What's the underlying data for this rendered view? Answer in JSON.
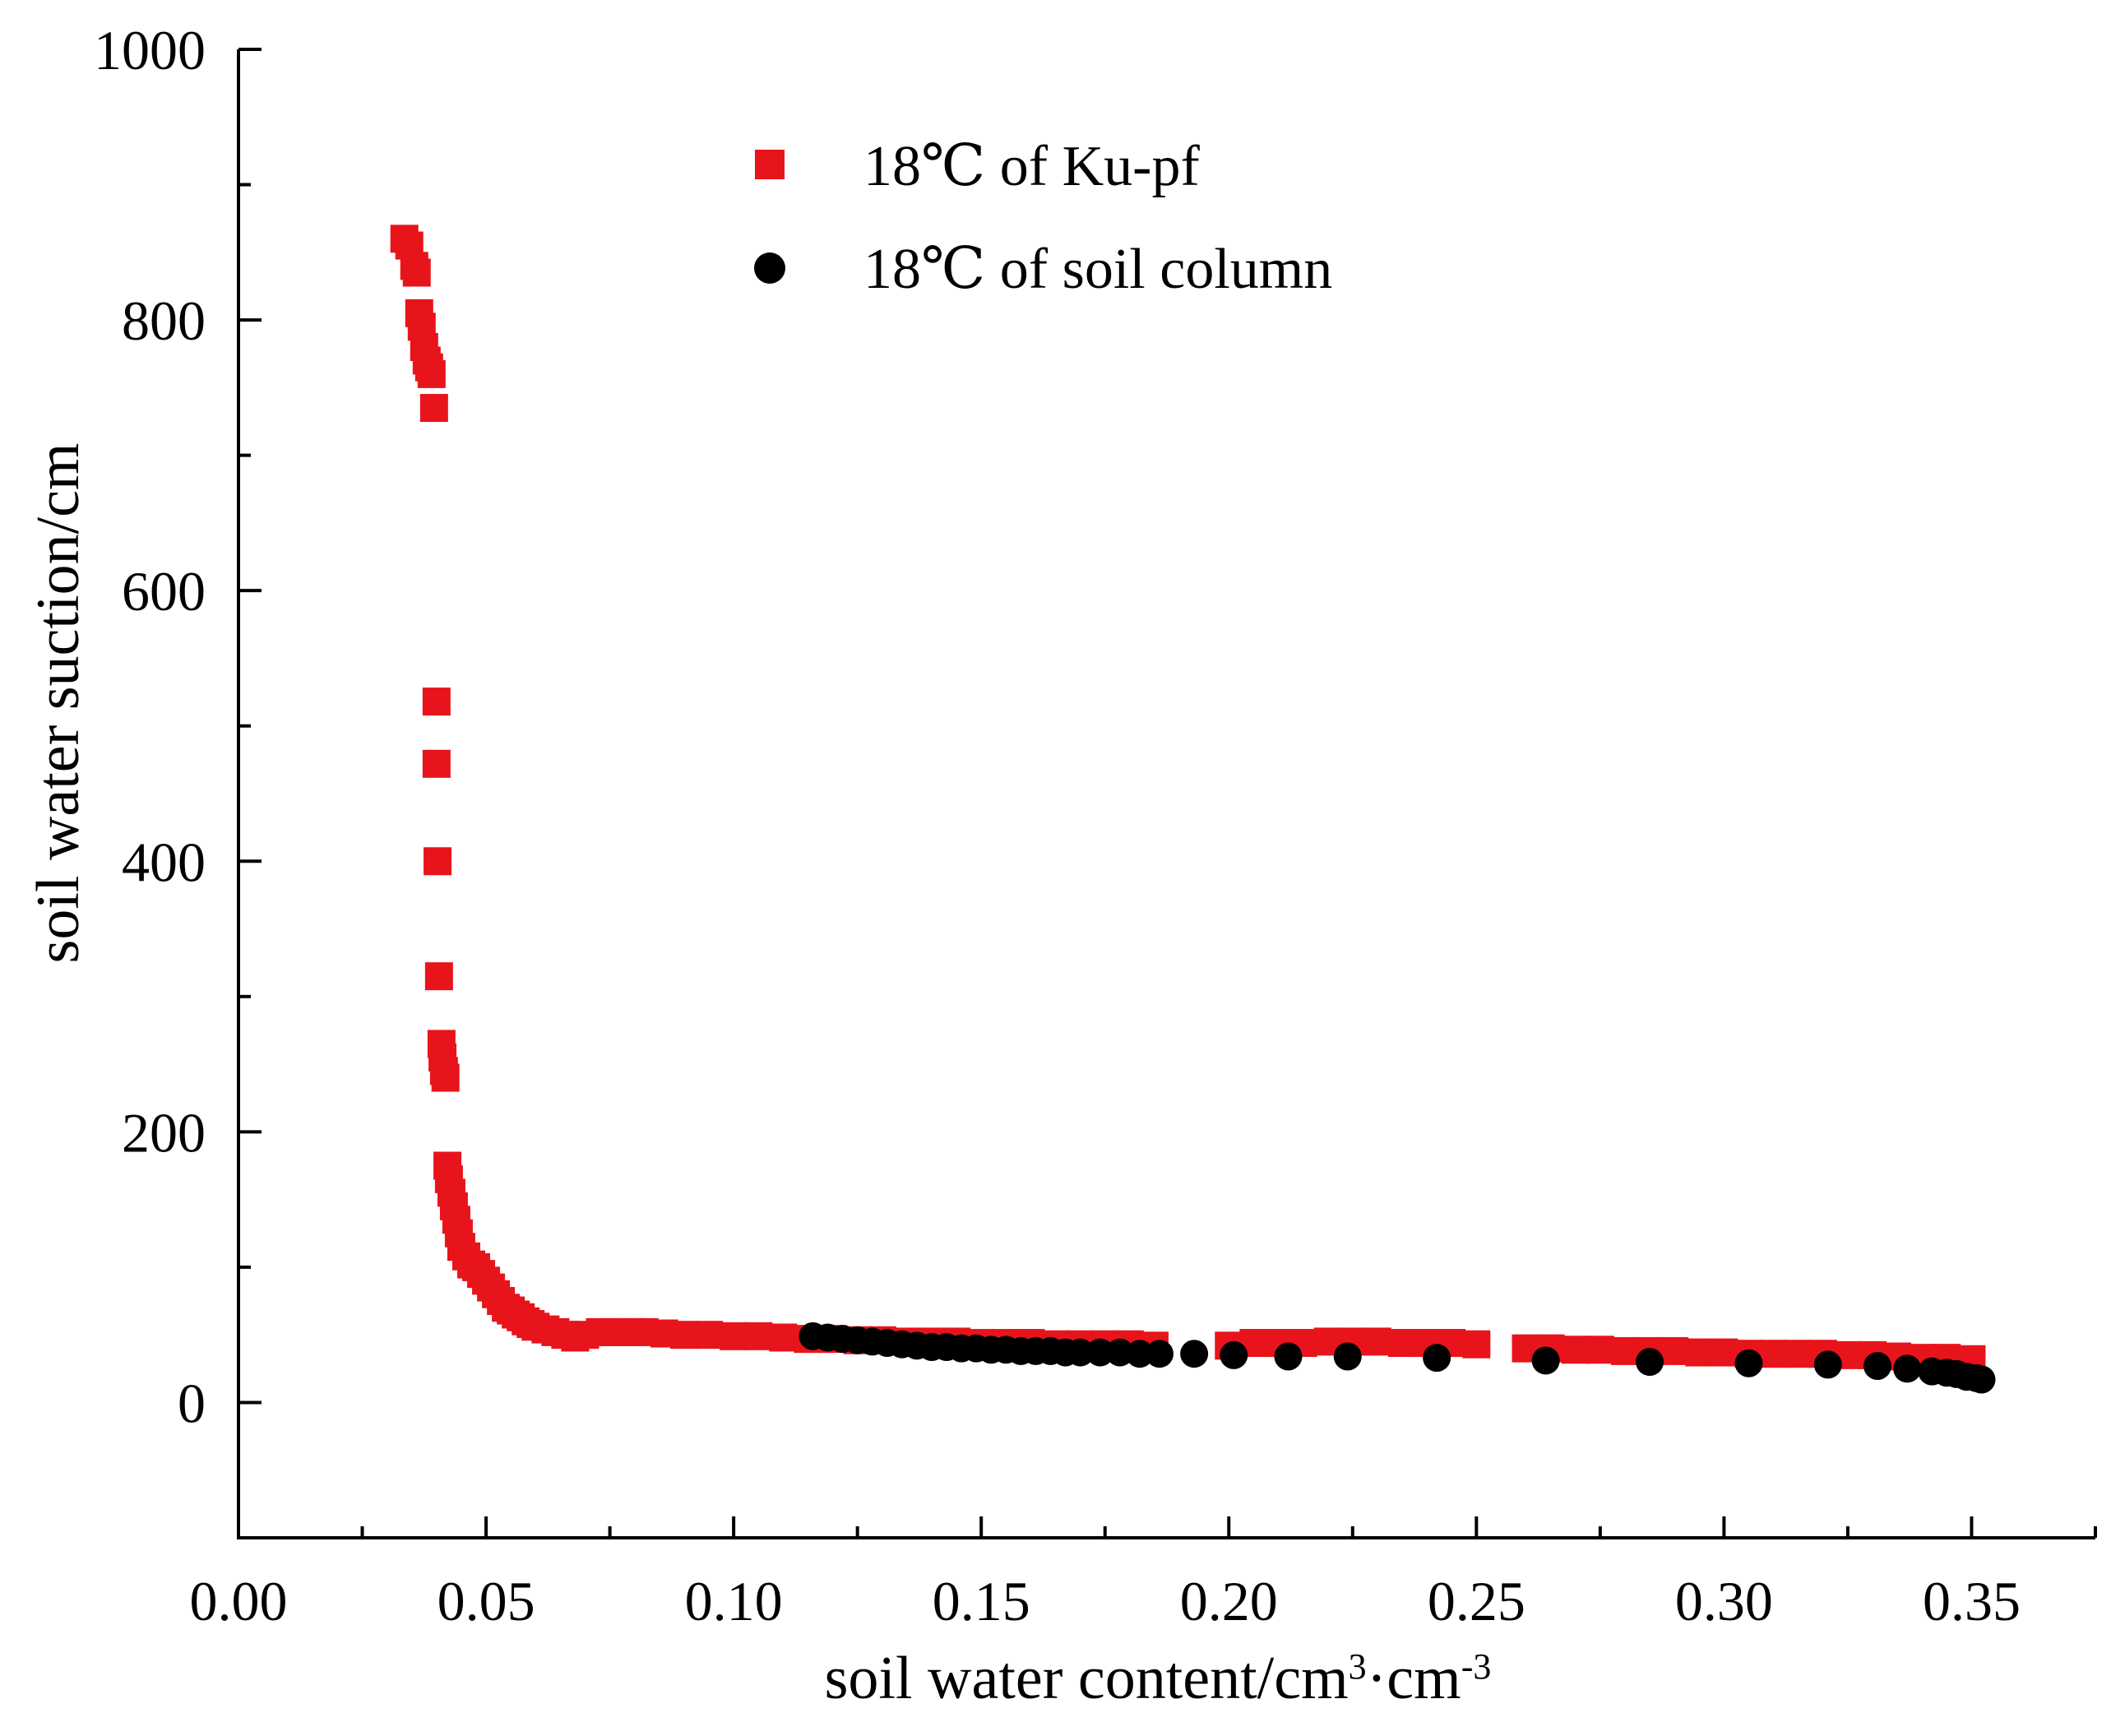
{
  "chart_data": {
    "type": "scatter",
    "title": "",
    "xlabel": "soil water content/cm",
    "xlabel_sup1": "3",
    "xlabel_mid": "·cm",
    "xlabel_sup2": "-3",
    "ylabel": "soil water suction/cm",
    "xlim": [
      0.0,
      0.375
    ],
    "ylim": [
      -100,
      1000
    ],
    "x_ticks": [
      0.0,
      0.05,
      0.1,
      0.15,
      0.2,
      0.25,
      0.3,
      0.35
    ],
    "x_tick_labels": [
      "0.00",
      "0.05",
      "0.10",
      "0.15",
      "0.20",
      "0.25",
      "0.30",
      "0.35"
    ],
    "y_ticks": [
      0,
      200,
      400,
      600,
      800,
      1000
    ],
    "y_tick_labels": [
      "0",
      "200",
      "400",
      "600",
      "800",
      "1000"
    ],
    "grid": false,
    "legend_position": "top-center",
    "series": [
      {
        "name": "18℃ of Ku-pf",
        "marker": "square",
        "color": "#e8141b",
        "x": [
          0.0335,
          0.0345,
          0.0355,
          0.036,
          0.0365,
          0.037,
          0.0375,
          0.038,
          0.0385,
          0.039,
          0.0395,
          0.04,
          0.04,
          0.0402,
          0.0405,
          0.041,
          0.0412,
          0.0415,
          0.0418,
          0.0422,
          0.0425,
          0.043,
          0.0435,
          0.044,
          0.0445,
          0.045,
          0.046,
          0.047,
          0.048,
          0.049,
          0.05,
          0.051,
          0.052,
          0.053,
          0.054,
          0.055,
          0.056,
          0.057,
          0.058,
          0.059,
          0.06,
          0.062,
          0.064,
          0.066,
          0.068,
          0.07,
          0.073,
          0.076,
          0.079,
          0.082,
          0.086,
          0.09,
          0.095,
          0.1,
          0.105,
          0.11,
          0.115,
          0.12,
          0.125,
          0.13,
          0.135,
          0.14,
          0.145,
          0.15,
          0.155,
          0.16,
          0.165,
          0.17,
          0.175,
          0.18,
          0.185,
          0.2,
          0.205,
          0.21,
          0.215,
          0.22,
          0.225,
          0.23,
          0.235,
          0.24,
          0.245,
          0.25,
          0.26,
          0.265,
          0.27,
          0.275,
          0.28,
          0.285,
          0.29,
          0.295,
          0.3,
          0.305,
          0.31,
          0.315,
          0.32,
          0.325,
          0.33,
          0.335,
          0.34,
          0.345,
          0.35
        ],
        "y": [
          860,
          855,
          840,
          835,
          805,
          795,
          780,
          770,
          765,
          760,
          735,
          518,
          472,
          400,
          315,
          265,
          255,
          245,
          240,
          175,
          165,
          155,
          145,
          135,
          125,
          115,
          108,
          102,
          100,
          95,
          90,
          85,
          80,
          75,
          70,
          68,
          65,
          63,
          60,
          58,
          56,
          54,
          52,
          50,
          48,
          50,
          52,
          52,
          52,
          52,
          51,
          50,
          50,
          49,
          49,
          48,
          47,
          47,
          46,
          46,
          45,
          45,
          45,
          44,
          44,
          44,
          43,
          43,
          43,
          43,
          42,
          42,
          44,
          44,
          44,
          45,
          45,
          45,
          44,
          44,
          44,
          43,
          40,
          40,
          39,
          39,
          38,
          38,
          38,
          37,
          37,
          36,
          36,
          36,
          36,
          35,
          35,
          34,
          33,
          33,
          32
        ]
      },
      {
        "name": "18℃ of soil column",
        "marker": "circle",
        "color": "#000000",
        "x": [
          0.116,
          0.119,
          0.122,
          0.125,
          0.128,
          0.131,
          0.134,
          0.137,
          0.14,
          0.143,
          0.146,
          0.149,
          0.152,
          0.155,
          0.158,
          0.161,
          0.164,
          0.167,
          0.17,
          0.174,
          0.178,
          0.182,
          0.186,
          0.193,
          0.201,
          0.212,
          0.224,
          0.242,
          0.264,
          0.285,
          0.305,
          0.321,
          0.331,
          0.337,
          0.342,
          0.345,
          0.347,
          0.349,
          0.351,
          0.352
        ],
        "y": [
          49,
          48,
          47,
          46,
          45,
          44,
          43,
          42,
          41,
          41,
          40,
          40,
          39,
          39,
          38,
          38,
          38,
          37,
          37,
          37,
          37,
          36,
          36,
          36,
          35,
          34,
          34,
          33,
          31,
          30,
          29,
          28,
          27,
          25,
          23,
          22,
          21,
          19,
          18,
          17
        ]
      }
    ]
  }
}
